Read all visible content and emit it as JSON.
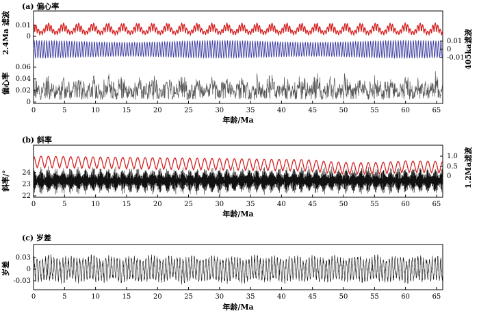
{
  "chart_data": [
    {
      "type": "line",
      "title": "(a) 偏心率",
      "xlabel": "年龄/Ma",
      "x_range": [
        0,
        66
      ],
      "x_ticks": [
        "0",
        "5",
        "10",
        "15",
        "20",
        "25",
        "30",
        "35",
        "40",
        "45",
        "50",
        "55",
        "60",
        "65"
      ],
      "panels": [
        {
          "id": "ecc-2p4ma",
          "ylabel": "2.4Ma 滤波",
          "y_ticks": [
            "0.01",
            "0"
          ],
          "series": [
            {
              "color": "#d62020",
              "value_range": [
                -0.005,
                0.015
              ],
              "cycle_Ma": 2.4,
              "sub_cycle_Ma": 0.405
            }
          ]
        },
        {
          "id": "ecc-405ka",
          "ylabel": "405ka滤波",
          "axis_side": "right",
          "y_ticks": [
            "0.01",
            "0",
            "-0.01"
          ],
          "series": [
            {
              "color": "#3a3aa0",
              "amplitude": 0.011,
              "period_Ma": 0.405
            }
          ]
        },
        {
          "id": "ecc-raw",
          "ylabel": "偏心率",
          "ylim": [
            0,
            0.06
          ],
          "y_ticks": [
            "0.06",
            "0.04",
            "0.02",
            "0"
          ],
          "series": [
            {
              "color": "#555555",
              "value_range": [
                0.002,
                0.058
              ]
            }
          ]
        }
      ]
    },
    {
      "type": "line",
      "title": "(b) 斜率",
      "xlabel": "年龄/Ma",
      "x_range": [
        0,
        66
      ],
      "x_ticks": [
        "0",
        "5",
        "10",
        "15",
        "20",
        "25",
        "30",
        "35",
        "40",
        "45",
        "50",
        "55",
        "60",
        "65"
      ],
      "left_axis": {
        "label": "斜率/°",
        "ylim": [
          22,
          25
        ],
        "ticks": [
          "24",
          "23",
          "22"
        ]
      },
      "right_axis": {
        "label": "1.2Ma滤波",
        "ticks": [
          "1.0",
          "0.5",
          "0"
        ]
      },
      "series": [
        {
          "id": "obliquity",
          "color": "#111111",
          "mean": 23.3,
          "amplitude_range": [
            0.6,
            1.3
          ],
          "period_Ma": 0.041
        },
        {
          "id": "filter-1p2ma",
          "color": "#d62020",
          "value_range": [
            0.1,
            0.95
          ],
          "cycle_Ma": 1.2
        }
      ]
    },
    {
      "type": "line",
      "title": "(c) 岁差",
      "xlabel": "年龄/Ma",
      "x_range": [
        0,
        66
      ],
      "x_ticks": [
        "0",
        "5",
        "10",
        "15",
        "20",
        "25",
        "30",
        "35",
        "40",
        "45",
        "50",
        "55",
        "60",
        "65"
      ],
      "y_ticks": [
        "0.03",
        "0",
        "-0.03"
      ],
      "ylabel": "岁差",
      "series": [
        {
          "id": "precession",
          "color": "#111111",
          "amplitude_range": [
            -0.045,
            0.045
          ],
          "period_Ma": 0.021
        }
      ]
    }
  ]
}
